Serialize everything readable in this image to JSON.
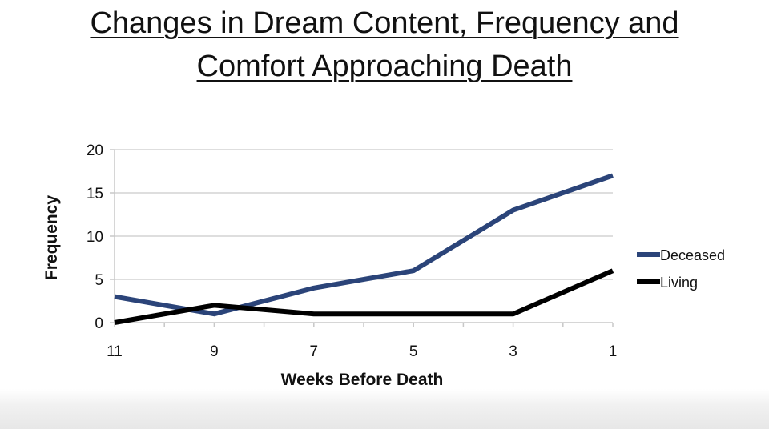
{
  "title_line1": "Changes in Dream Content, Frequency  and",
  "title_line2": "Comfort Approaching Death",
  "chart_data": {
    "type": "line",
    "title": "Changes in Dream Content, Frequency  and Comfort Approaching Death",
    "xlabel": "Weeks Before Death",
    "ylabel": "Frequency",
    "x": [
      11,
      9,
      7,
      5,
      3,
      1
    ],
    "x_tick_labels": [
      "11",
      "9",
      "7",
      "5",
      "3",
      "1"
    ],
    "y_tick_labels": [
      "0",
      "5",
      "10",
      "15",
      "20"
    ],
    "ylim": [
      0,
      20
    ],
    "y_ticks": [
      0,
      5,
      10,
      15,
      20
    ],
    "x_reversed": true,
    "grid": "horizontal",
    "legend_position": "right",
    "series": [
      {
        "name": "Deceased",
        "color": "#2b4479",
        "values": [
          3,
          1,
          4,
          6,
          13,
          17
        ]
      },
      {
        "name": "Living",
        "color": "#000000",
        "values": [
          0,
          2,
          1,
          1,
          1,
          6
        ]
      }
    ]
  }
}
